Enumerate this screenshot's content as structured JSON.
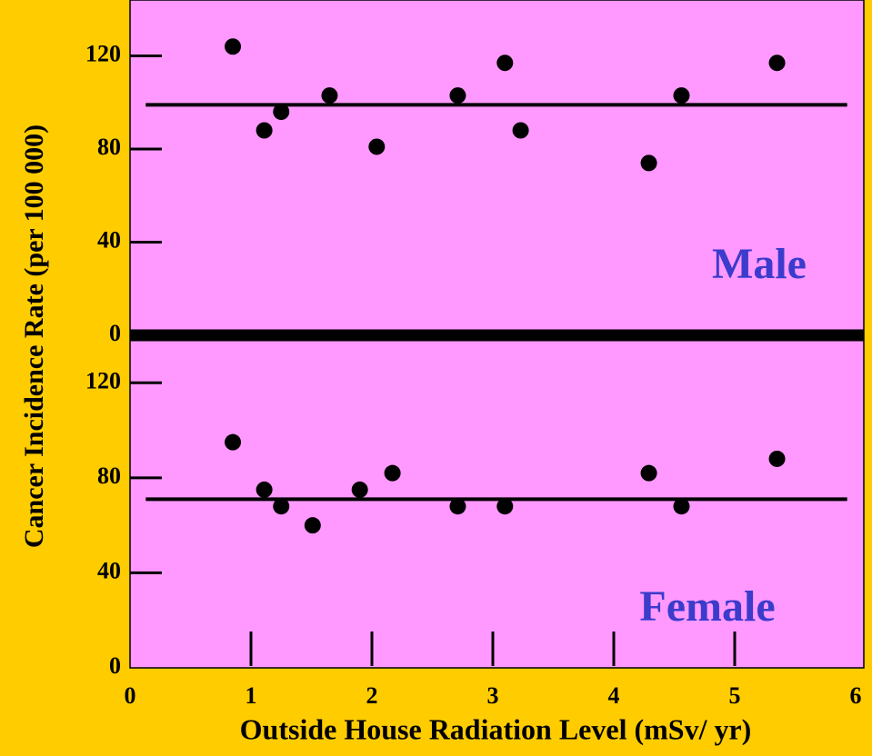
{
  "chart_data": [
    {
      "type": "scatter",
      "annotation": "Male",
      "ylabel": "Cancer Incidence Rate (per 100 000)",
      "x": [
        0.85,
        1.11,
        1.25,
        1.65,
        2.04,
        2.71,
        3.1,
        3.23,
        4.29,
        4.56,
        5.35
      ],
      "values": [
        124,
        88,
        96,
        103,
        81,
        103,
        117,
        88,
        74,
        103,
        117
      ],
      "hline": 99,
      "hline_xlim": [
        0.13,
        5.93
      ],
      "xlim": [
        0,
        6
      ],
      "ylim": [
        0,
        144
      ],
      "yticks": [
        0,
        40,
        80,
        120
      ],
      "color": "#000000"
    },
    {
      "type": "scatter",
      "annotation": "Female",
      "xlabel": "Outside House Radiation Level (mSv/ yr)",
      "x": [
        0.85,
        1.11,
        1.25,
        1.51,
        1.9,
        2.17,
        2.71,
        3.1,
        4.29,
        4.56,
        5.35
      ],
      "values": [
        95,
        75,
        68,
        60,
        75,
        82,
        68,
        68,
        82,
        68,
        88
      ],
      "hline": 71,
      "hline_xlim": [
        0.13,
        5.93
      ],
      "xlim": [
        0,
        6
      ],
      "ylim": [
        0,
        140
      ],
      "yticks": [
        0,
        40,
        80,
        120
      ],
      "xticks": [
        0,
        1,
        2,
        3,
        4,
        5,
        6
      ],
      "color": "#000000"
    }
  ]
}
